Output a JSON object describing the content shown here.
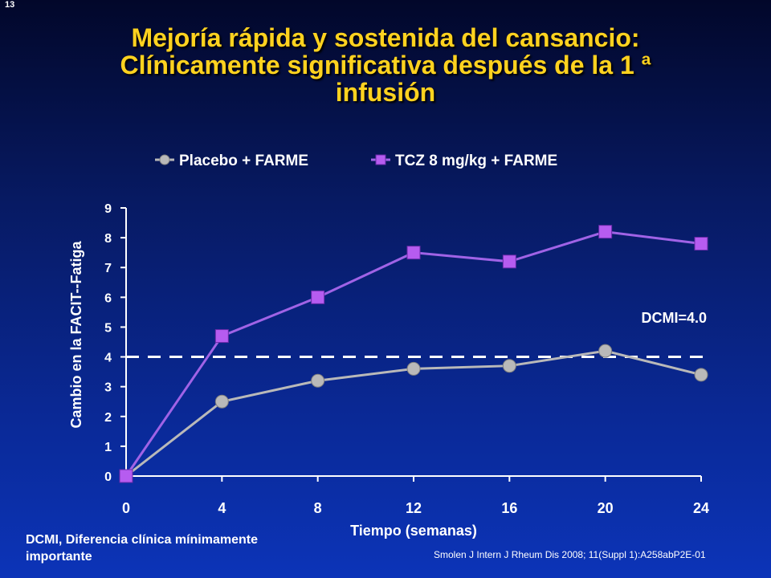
{
  "slide_number": "13",
  "title_lines": [
    "Mejoría rápida y sostenida del cansancio:",
    "Clínicamente significativa después de la 1 ª",
    "infusión"
  ],
  "footnote_lines": [
    "DCMI, Diferencia clínica mínimamente",
    "importante"
  ],
  "citation": "Smolen J Intern J Rheum Dis 2008;  11(Suppl 1):A258abP2E-01",
  "colors": {
    "placebo": "#b9b9b9",
    "tcz_line": "#a063e6",
    "tcz_marker": "#b65cf0",
    "threshold": "#ffffff",
    "title": "#ffd21f"
  },
  "chart_data": {
    "type": "line",
    "xlabel": "Tiempo (semanas)",
    "ylabel": "Cambio en la FACIT--Fatiga",
    "x": [
      0,
      4,
      8,
      12,
      16,
      20,
      24
    ],
    "xlim": [
      0,
      24
    ],
    "ylim": [
      0,
      9
    ],
    "x_ticks": [
      "0",
      "4",
      "8",
      "12",
      "16",
      "20",
      "24"
    ],
    "y_ticks": [
      "0",
      "1",
      "2",
      "3",
      "4",
      "5",
      "6",
      "7",
      "8",
      "9"
    ],
    "legend_position": "top",
    "grid": false,
    "series": [
      {
        "name": "Placebo + FARME",
        "marker": "circle",
        "values": [
          0,
          2.5,
          3.2,
          3.6,
          3.7,
          4.2,
          3.4
        ]
      },
      {
        "name": "TCZ 8 mg/kg + FARME",
        "marker": "square",
        "values": [
          0,
          4.7,
          6.0,
          7.5,
          7.2,
          8.2,
          7.8
        ]
      }
    ],
    "reference_line": {
      "y": 4.0,
      "label": "DCMI=4.0"
    }
  }
}
